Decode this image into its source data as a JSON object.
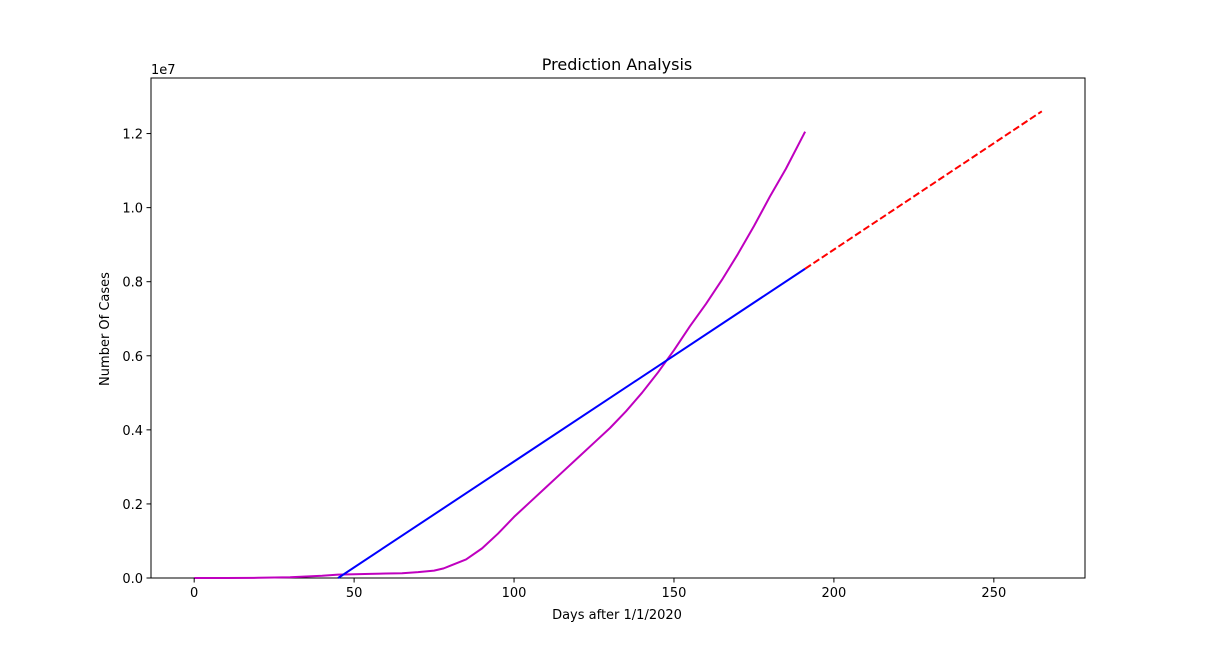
{
  "chart_data": {
    "type": "line",
    "title": "Prediction Analysis",
    "xlabel": "Days after 1/1/2020",
    "ylabel": "Number Of Cases",
    "y_offset_text": "1e7",
    "xlim": [
      -13.5,
      278.5
    ],
    "ylim": [
      0,
      13500000
    ],
    "x_ticks": [
      0,
      50,
      100,
      150,
      200,
      250
    ],
    "x_tick_labels": [
      "0",
      "50",
      "100",
      "150",
      "200",
      "250"
    ],
    "y_ticks": [
      0,
      2000000,
      4000000,
      6000000,
      8000000,
      10000000,
      12000000
    ],
    "y_tick_labels": [
      "0.0",
      "0.2",
      "0.4",
      "0.6",
      "0.8",
      "1.0",
      "1.2"
    ],
    "grid": false,
    "series": [
      {
        "color": "#bf00bf",
        "style": "solid",
        "x": [
          0,
          10,
          20,
          30,
          40,
          45,
          50,
          55,
          60,
          65,
          70,
          75,
          78,
          80,
          85,
          90,
          95,
          100,
          105,
          110,
          115,
          120,
          125,
          130,
          135,
          140,
          145,
          150,
          155,
          160,
          165,
          170,
          175,
          180,
          185,
          191
        ],
        "y": [
          0,
          0,
          5000,
          20000,
          60000,
          90000,
          100000,
          110000,
          120000,
          130000,
          160000,
          200000,
          260000,
          330000,
          500000,
          800000,
          1200000,
          1650000,
          2050000,
          2450000,
          2850000,
          3250000,
          3650000,
          4050000,
          4500000,
          5000000,
          5550000,
          6150000,
          6800000,
          7400000,
          8050000,
          8750000,
          9500000,
          10300000,
          11050000,
          12050000
        ]
      },
      {
        "color": "#0000ff",
        "style": "solid",
        "x": [
          45,
          191
        ],
        "y": [
          0,
          8350000
        ]
      },
      {
        "color": "#ff0000",
        "style": "dashed",
        "x": [
          191,
          265
        ],
        "y": [
          8350000,
          12600000
        ]
      }
    ]
  }
}
